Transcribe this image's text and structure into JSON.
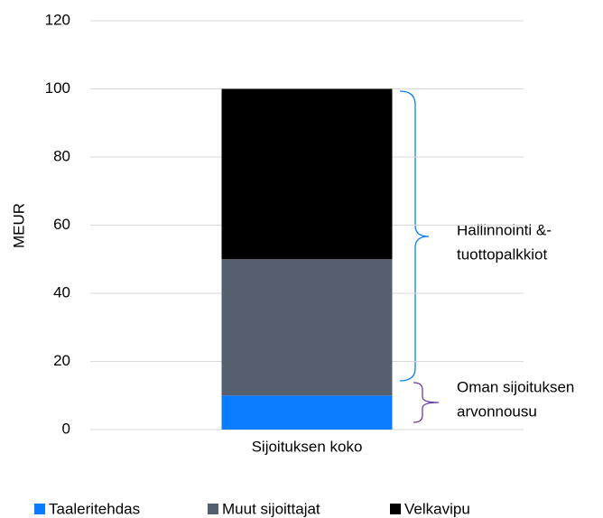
{
  "chart_data": {
    "type": "stacked_bar",
    "categories": [
      "Sijoituksen koko"
    ],
    "y_label": "MEUR",
    "series": [
      {
        "name": "Taaleritehdas",
        "color": "#0a7cff",
        "values": [
          10
        ]
      },
      {
        "name": "Muut sijoittajat",
        "color": "#555f6d",
        "values": [
          40
        ]
      },
      {
        "name": "Velkavipu",
        "color": "#000000",
        "values": [
          50
        ]
      }
    ],
    "ylim": [
      0,
      120
    ],
    "yticks": [
      0,
      20,
      40,
      60,
      80,
      100,
      120
    ],
    "grid": true,
    "legend": "bottom",
    "annotations": [
      {
        "lines": [
          "Hallinnointi &-",
          "tuottopalkkiot"
        ]
      },
      {
        "lines": [
          "Oman sijoituksen",
          "arvonnousu"
        ]
      }
    ]
  }
}
